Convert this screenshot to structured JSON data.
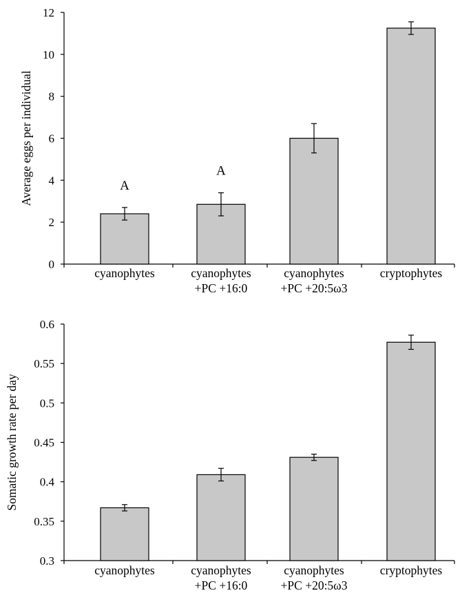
{
  "chart_data": [
    {
      "type": "bar",
      "ylabel": "Average eggs per individual",
      "ylim": [
        0,
        12
      ],
      "yticks": [
        "0",
        "2",
        "4",
        "6",
        "8",
        "10",
        "12"
      ],
      "categories": [
        [
          "cyanophytes"
        ],
        [
          "cyanophytes",
          "+PC +16:0"
        ],
        [
          "cyanophytes",
          "+PC +20:5ω3"
        ],
        [
          "cryptophytes"
        ]
      ],
      "values": [
        2.4,
        2.85,
        6.0,
        11.25
      ],
      "errors": [
        0.3,
        0.55,
        0.7,
        0.3
      ],
      "annotations": [
        "A",
        "A",
        "",
        ""
      ],
      "bar_color": "#c8c8c8",
      "grid": false
    },
    {
      "type": "bar",
      "ylabel": "Somatic growth rate per day",
      "ylim": [
        0.3,
        0.6
      ],
      "yticks": [
        "0.3",
        "0.35",
        "0.4",
        "0.45",
        "0.5",
        "0.55",
        "0.6"
      ],
      "categories": [
        [
          "cyanophytes"
        ],
        [
          "cyanophytes",
          "+PC +16:0"
        ],
        [
          "cyanophytes",
          "+PC +20:5ω3"
        ],
        [
          "cryptophytes"
        ]
      ],
      "values": [
        0.367,
        0.409,
        0.431,
        0.577
      ],
      "errors": [
        0.004,
        0.008,
        0.004,
        0.009
      ],
      "annotations": [
        "",
        "",
        "",
        ""
      ],
      "bar_color": "#c8c8c8",
      "grid": false
    }
  ]
}
